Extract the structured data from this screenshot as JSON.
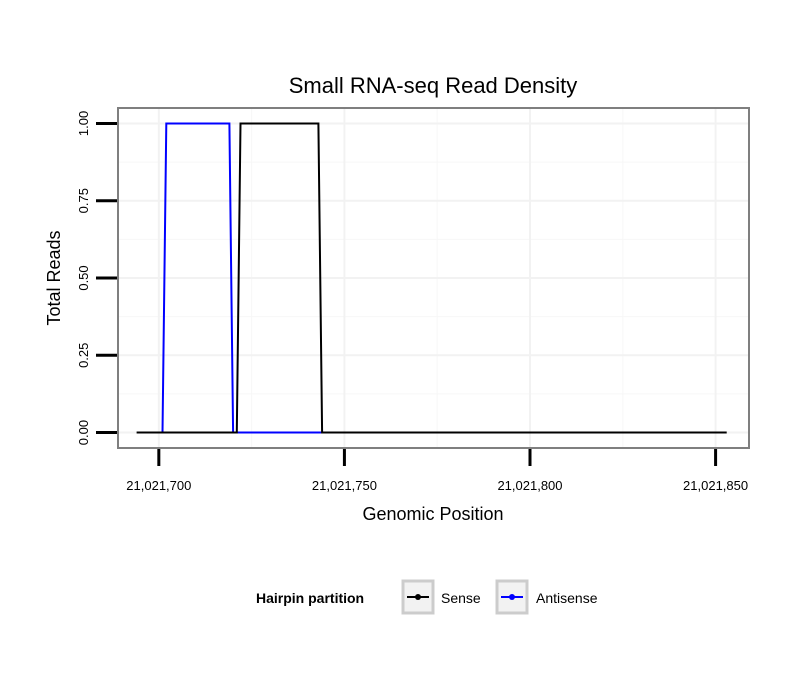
{
  "chart_data": {
    "type": "line",
    "title": "Small RNA-seq Read Density",
    "xlabel": "Genomic Position",
    "ylabel": "Total Reads",
    "xlim": [
      21021689,
      21021859
    ],
    "ylim": [
      -0.05,
      1.05
    ],
    "x_ticks": [
      21021700,
      21021750,
      21021800,
      21021850
    ],
    "x_tick_labels": [
      "21,021,700",
      "21,021,750",
      "21,021,800",
      "21,021,850"
    ],
    "y_ticks": [
      0,
      0.25,
      0.5,
      0.75,
      1.0
    ],
    "y_tick_labels": [
      "0.00",
      "0.25",
      "0.50",
      "0.75",
      "1.00"
    ],
    "grid": true,
    "legend": {
      "title": "Hairpin partition",
      "position": "bottom"
    },
    "series": [
      {
        "name": "Sense",
        "color": "#000000",
        "x": [
          21021694,
          21021721,
          21021722,
          21021743,
          21021744,
          21021853
        ],
        "y": [
          0,
          0,
          1,
          1,
          0,
          0
        ]
      },
      {
        "name": "Antisense",
        "color": "#0000ff",
        "x": [
          21021701,
          21021702,
          21021719,
          21021720,
          21021744
        ],
        "y": [
          0,
          1,
          1,
          0,
          0
        ]
      }
    ]
  }
}
